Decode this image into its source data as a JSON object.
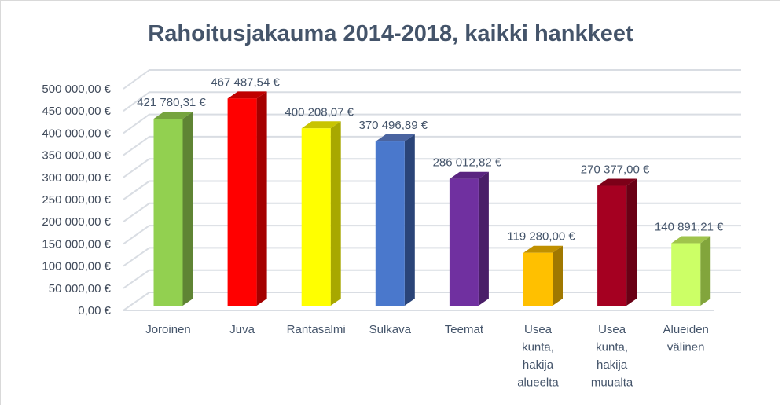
{
  "chart_data": {
    "type": "bar",
    "style": "3d-column",
    "title": "Rahoitusjakauma 2014-2018, kaikki hankkeet",
    "xlabel": "",
    "ylabel": "",
    "ylim": [
      0,
      500000
    ],
    "grid": true,
    "legend": "none",
    "y_ticks": [
      "0,00 €",
      "50 000,00 €",
      "100 000,00 €",
      "150 000,00 €",
      "200 000,00 €",
      "250 000,00 €",
      "300 000,00 €",
      "350 000,00 €",
      "400 000,00 €",
      "450 000,00 €",
      "500 000,00 €"
    ],
    "categories": [
      [
        "Joroinen"
      ],
      [
        "Juva"
      ],
      [
        "Rantasalmi"
      ],
      [
        "Sulkava"
      ],
      [
        "Teemat"
      ],
      [
        "Usea",
        "kunta,",
        "hakija",
        "alueelta"
      ],
      [
        "Usea",
        "kunta,",
        "hakija",
        "muualta"
      ],
      [
        "Alueiden",
        "välinen"
      ]
    ],
    "values": [
      421780.31,
      467487.54,
      400208.07,
      370496.89,
      286012.82,
      119280.0,
      270377.0,
      140891.21
    ],
    "data_labels": [
      "421 780,31 €",
      "467 487,54 €",
      "400 208,07 €",
      "370 496,89 €",
      "286 012,82 €",
      "119 280,00 €",
      "270 377,00 €",
      "140 891,21 €"
    ],
    "colors": [
      {
        "front": "#92d050",
        "side": "#5f8434",
        "top": "#76a43e"
      },
      {
        "front": "#ff0000",
        "side": "#a50000",
        "top": "#c00000"
      },
      {
        "front": "#ffff00",
        "side": "#a8a800",
        "top": "#c8c400"
      },
      {
        "front": "#4a78cc",
        "side": "#2a4478",
        "top": "#4a64a0"
      },
      {
        "front": "#7030a0",
        "side": "#4a1e68",
        "top": "#5a2480"
      },
      {
        "front": "#ffc000",
        "side": "#a07800",
        "top": "#c09000"
      },
      {
        "front": "#a50021",
        "side": "#6a0015",
        "top": "#7c0018"
      },
      {
        "front": "#ccff66",
        "side": "#82a53c",
        "top": "#a0c44c"
      }
    ]
  }
}
